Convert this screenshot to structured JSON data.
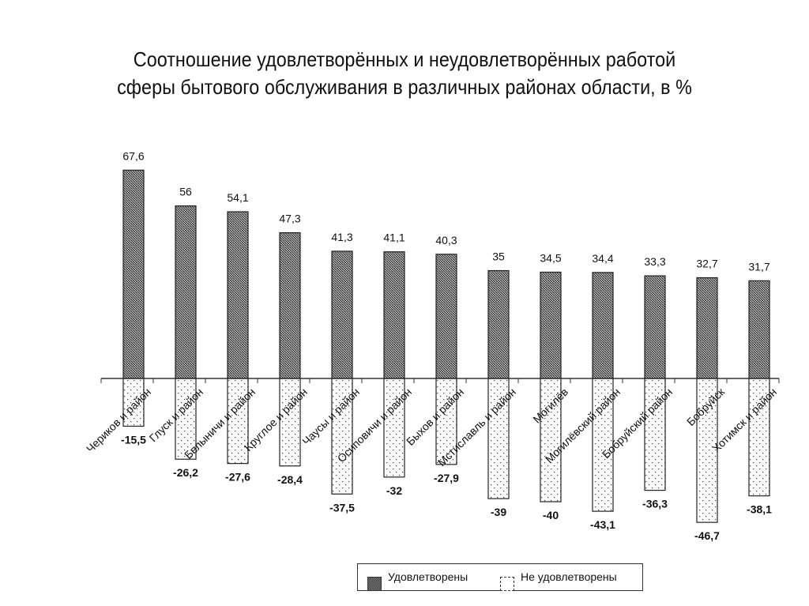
{
  "title_line1": "Соотношение удовлетворённых и неудовлетворённых работой",
  "title_line2": "сферы бытового обслуживания в различных районах области, в %",
  "legend": {
    "satisfied": "Удовлетворены",
    "unsatisfied": "Не удовлетворены"
  },
  "chart_data": {
    "type": "bar",
    "title": "Соотношение удовлетворённых и неудовлетворённых работой сферы бытового обслуживания в различных районах области, в %",
    "xlabel": "",
    "ylabel": "",
    "grid": false,
    "legend_position": "bottom",
    "categories": [
      "Чериков и район",
      "Глуск и район",
      "Белыничи и район",
      "Круглое и район",
      "Чаусы и район",
      "Осиповичи и район",
      "Быхов и район",
      "Мстиславль и район",
      "Могилёв",
      "Могилёвский район",
      "Бобруйский район",
      "Бобруйск",
      "Хотимск и район"
    ],
    "series": [
      {
        "name": "Удовлетворены",
        "values": [
          67.6,
          56,
          54.1,
          47.3,
          41.3,
          41.1,
          40.3,
          35,
          34.5,
          34.4,
          33.3,
          32.7,
          31.7
        ],
        "labels": [
          "67,6",
          "56",
          "54,1",
          "47,3",
          "41,3",
          "41,1",
          "40,3",
          "35",
          "34,5",
          "34,4",
          "33,3",
          "32,7",
          "31,7"
        ]
      },
      {
        "name": "Не удовлетворены",
        "values": [
          -15.5,
          -26.2,
          -27.6,
          -28.4,
          -37.5,
          -32,
          -27.9,
          -39,
          -40,
          -43.1,
          -36.3,
          -46.7,
          -38.1
        ],
        "labels": [
          "-15,5",
          "-26,2",
          "-27,6",
          "-28,4",
          "-37,5",
          "-32",
          "-27,9",
          "-39",
          "-40",
          "-43,1",
          "-36,3",
          "-46,7",
          "-38,1"
        ]
      }
    ],
    "ylim": [
      -50,
      70
    ]
  }
}
